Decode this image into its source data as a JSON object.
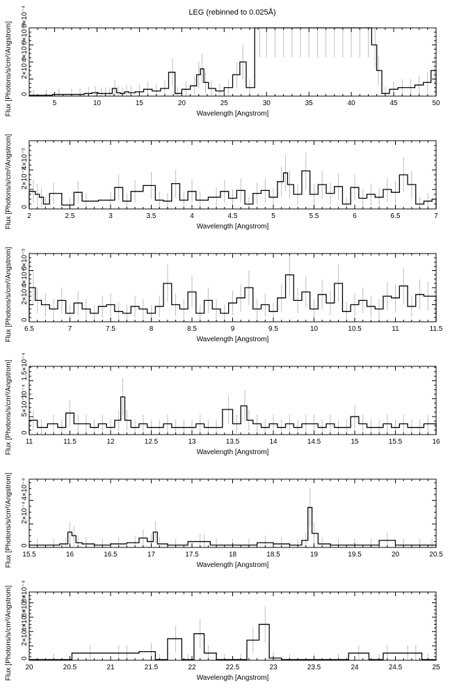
{
  "figure": {
    "title": "LEG (rebinned to 0.025Å)"
  },
  "colors": {
    "data": "#000000",
    "errorbar": "#bdbdbd",
    "axis": "#000000",
    "background": "#ffffff"
  },
  "chart_data": [
    {
      "type": "line",
      "title": "LEG (rebinned to 0.025Å)",
      "xlabel": "Wavelength [Angstrom]",
      "ylabel": "Flux [Photons/s/cm²/Angstrom]",
      "xlim": [
        2,
        50
      ],
      "ylim": [
        0,
        0.0008
      ],
      "xticks": [
        5,
        10,
        15,
        20,
        25,
        30,
        35,
        40,
        45,
        50
      ],
      "xtick_labels": [
        "5",
        "10",
        "15",
        "20",
        "25",
        "30",
        "35",
        "40",
        "45",
        "50"
      ],
      "yticks": [
        0,
        0.0002,
        0.0004,
        0.0006,
        0.0008
      ],
      "ytick_labels": [
        "0",
        "2×10⁻⁴",
        "4×10⁻⁴",
        "6×10⁻⁴",
        "8×10⁻⁴"
      ],
      "grid": false,
      "series": [
        {
          "x": [
            2.5,
            4,
            5.5,
            7,
            8,
            9,
            9.8,
            10.5,
            11,
            11.5,
            12.1,
            12.5,
            13,
            13.5,
            14,
            15,
            16,
            17,
            18,
            18.9,
            19.5,
            20.5,
            21.5,
            22,
            22.4,
            22.8,
            23.5,
            24.5,
            25.5,
            26.5,
            27.2,
            28,
            29.2,
            30,
            31,
            32,
            33,
            34,
            35,
            36,
            37,
            38,
            39,
            40,
            41,
            42,
            42.8,
            43.2,
            44,
            45,
            46,
            47,
            48,
            49,
            49.8
          ],
          "y": [
            1e-05,
            1e-05,
            2e-05,
            2e-05,
            2e-05,
            3e-05,
            4e-05,
            3e-05,
            3e-05,
            3e-05,
            9e-05,
            4e-05,
            3e-05,
            5e-05,
            4e-05,
            5e-05,
            8e-05,
            6e-05,
            9e-05,
            0.00028,
            3e-05,
            8e-05,
            0.00012,
            0.00025,
            0.00032,
            0.00016,
            9e-05,
            6e-05,
            0.0001,
            0.00025,
            0.0004,
            0.0001,
            0.0008,
            0.0008,
            0.0008,
            0.0008,
            0.0008,
            0.0008,
            0.0008,
            0.0008,
            0.0008,
            0.0008,
            0.0008,
            0.0008,
            0.0008,
            0.0008,
            0.0006,
            0.0003,
            3e-05,
            8e-05,
            0.0001,
            0.0001,
            0.00013,
            0.00016,
            0.0003
          ]
        }
      ]
    },
    {
      "type": "line",
      "xlabel": "Wavelength [Angstrom]",
      "ylabel": "Flux [Photons/s/cm²/Angstrom]",
      "xlim": [
        2,
        7
      ],
      "ylim": [
        0,
        7e-05
      ],
      "xticks": [
        2,
        2.5,
        3,
        3.5,
        4,
        4.5,
        5,
        5.5,
        6,
        6.5,
        7
      ],
      "xtick_labels": [
        "2",
        "2.5",
        "3",
        "3.5",
        "4",
        "4.5",
        "5",
        "5.5",
        "6",
        "6.5",
        "7"
      ],
      "yticks": [
        0,
        2e-05,
        4e-05
      ],
      "ytick_labels": [
        "0",
        "2×10⁻⁵",
        "4×10⁻⁵"
      ],
      "grid": false,
      "series": [
        {
          "x": [
            2.05,
            2.1,
            2.15,
            2.2,
            2.3,
            2.5,
            2.6,
            2.7,
            3.0,
            3.1,
            3.2,
            3.3,
            3.5,
            3.6,
            3.7,
            3.8,
            3.9,
            4.0,
            4.1,
            4.3,
            4.4,
            4.5,
            4.6,
            4.7,
            4.8,
            4.9,
            5.0,
            5.1,
            5.15,
            5.2,
            5.3,
            5.4,
            5.5,
            5.6,
            5.7,
            5.8,
            5.9,
            6.0,
            6.1,
            6.2,
            6.3,
            6.4,
            6.5,
            6.6,
            6.7,
            6.8,
            6.9,
            7.0
          ],
          "y": [
            1.8e-05,
            1.5e-05,
            1.2e-05,
            5e-06,
            1.6e-05,
            4e-06,
            1.7e-05,
            8e-06,
            9e-06,
            2.2e-05,
            8e-06,
            1.8e-05,
            2.4e-05,
            9e-06,
            8e-06,
            2.6e-05,
            9e-06,
            1.8e-05,
            9e-06,
            1.2e-05,
            1.8e-05,
            1.1e-05,
            1.9e-05,
            5e-06,
            1.6e-05,
            1.9e-05,
            1.2e-05,
            2.8e-05,
            3.7e-05,
            2.5e-05,
            1.5e-05,
            3.9e-05,
            1.5e-05,
            2.5e-05,
            1.6e-05,
            2.3e-05,
            5e-06,
            2.2e-05,
            1.1e-05,
            1.5e-05,
            1.2e-05,
            2e-05,
            1.7e-05,
            3.5e-05,
            2.5e-05,
            5e-06,
            8e-06,
            1e-05
          ]
        }
      ]
    },
    {
      "type": "line",
      "xlabel": "Wavelength [Angstrom]",
      "ylabel": "Flux [Photons/s/cm²/Angstrom]",
      "xlim": [
        6.5,
        11.5
      ],
      "ylim": [
        0,
        8e-05
      ],
      "xticks": [
        6.5,
        7,
        7.5,
        8,
        8.5,
        9,
        9.5,
        10,
        10.5,
        11,
        11.5
      ],
      "xtick_labels": [
        "6.5",
        "7",
        "7.5",
        "8",
        "8.5",
        "9",
        "9.5",
        "10",
        "10.5",
        "11",
        "11.5"
      ],
      "yticks": [
        0,
        2e-05,
        4e-05,
        6e-05
      ],
      "ytick_labels": [
        "0",
        "2×10⁻⁵",
        "4×10⁻⁵",
        "6×10⁻⁵"
      ],
      "grid": false,
      "series": [
        {
          "x": [
            6.55,
            6.6,
            6.7,
            6.8,
            6.9,
            7.0,
            7.1,
            7.2,
            7.3,
            7.4,
            7.5,
            7.6,
            7.7,
            7.8,
            7.9,
            8.0,
            8.1,
            8.2,
            8.3,
            8.4,
            8.5,
            8.6,
            8.7,
            8.8,
            8.9,
            9.0,
            9.1,
            9.2,
            9.3,
            9.4,
            9.5,
            9.6,
            9.7,
            9.8,
            9.9,
            10.0,
            10.1,
            10.2,
            10.3,
            10.4,
            10.5,
            10.6,
            10.7,
            10.8,
            10.9,
            11.0,
            11.1,
            11.2,
            11.3,
            11.4
          ],
          "y": [
            4e-05,
            2.5e-05,
            2e-05,
            1.5e-05,
            2.5e-05,
            1e-05,
            2.2e-05,
            1.5e-05,
            1e-05,
            1.8e-05,
            2e-05,
            1.2e-05,
            1e-05,
            1.8e-05,
            1.5e-05,
            1e-05,
            1.8e-05,
            4.5e-05,
            2e-05,
            1.5e-05,
            3.5e-05,
            1e-05,
            2.5e-05,
            1.5e-05,
            1e-05,
            2.2e-05,
            2.8e-05,
            4e-05,
            1.5e-05,
            2e-05,
            1.2e-05,
            2.8e-05,
            5.5e-05,
            2.5e-05,
            3.5e-05,
            1.5e-05,
            3.2e-05,
            2.2e-05,
            4.5e-05,
            1.2e-05,
            2e-05,
            2.5e-05,
            1.8e-05,
            1.5e-05,
            3e-05,
            2.8e-05,
            4.2e-05,
            1.8e-05,
            3.2e-05,
            3e-05
          ]
        }
      ]
    },
    {
      "type": "line",
      "xlabel": "Wavelength [Angstrom]",
      "ylabel": "Flux [Photons/s/cm²/Angstrom]",
      "xlim": [
        11,
        16
      ],
      "ylim": [
        0,
        0.00019
      ],
      "xticks": [
        11,
        11.5,
        12,
        12.5,
        13,
        13.5,
        14,
        14.5,
        15,
        15.5,
        16
      ],
      "xtick_labels": [
        "11",
        "11.5",
        "12",
        "12.5",
        "13",
        "13.5",
        "14",
        "14.5",
        "15",
        "15.5",
        "16"
      ],
      "yticks": [
        0,
        5e-05,
        0.0001,
        0.00015
      ],
      "ytick_labels": [
        "0",
        "5×10⁻⁵",
        "10⁻⁴",
        "1.5×10⁻⁴"
      ],
      "grid": false,
      "series": [
        {
          "x": [
            11.05,
            11.15,
            11.3,
            11.4,
            11.5,
            11.6,
            11.7,
            11.8,
            11.9,
            12.0,
            12.1,
            12.15,
            12.2,
            12.3,
            12.4,
            12.5,
            12.6,
            12.7,
            12.8,
            12.9,
            13.0,
            13.1,
            13.2,
            13.3,
            13.45,
            13.55,
            13.65,
            13.7,
            13.8,
            13.9,
            14.0,
            14.1,
            14.2,
            14.3,
            14.4,
            14.5,
            14.6,
            14.7,
            14.8,
            14.9,
            15.0,
            15.1,
            15.2,
            15.3,
            15.4,
            15.5,
            15.6,
            15.7,
            15.8,
            15.9,
            16.0
          ],
          "y": [
            4e-05,
            2e-05,
            3e-05,
            2e-05,
            6e-05,
            3e-05,
            3e-05,
            2e-05,
            3e-05,
            2e-05,
            4e-05,
            0.000105,
            4e-05,
            2e-05,
            3e-05,
            2e-05,
            2e-05,
            3e-05,
            2e-05,
            2e-05,
            2e-05,
            3e-05,
            2e-05,
            2e-05,
            7e-05,
            3e-05,
            8e-05,
            4e-05,
            3e-05,
            2e-05,
            3e-05,
            2e-05,
            3e-05,
            2e-05,
            3e-05,
            3e-05,
            2e-05,
            3e-05,
            2e-05,
            2e-05,
            5e-05,
            3e-05,
            2e-05,
            2e-05,
            3e-05,
            2e-05,
            3e-05,
            2e-05,
            2e-05,
            3e-05,
            3e-05
          ]
        }
      ]
    },
    {
      "type": "line",
      "xlabel": "Wavelength [Angstrom]",
      "ylabel": "Flux [Photons/s/cm²/Angstrom]",
      "xlim": [
        15.5,
        20.5
      ],
      "ylim": [
        0,
        0.00058
      ],
      "xticks": [
        15.5,
        16,
        16.5,
        17,
        17.5,
        18,
        18.5,
        19,
        19.5,
        20,
        20.5
      ],
      "xtick_labels": [
        "15.5",
        "16",
        "16.5",
        "17",
        "17.5",
        "18",
        "18.5",
        "19",
        "19.5",
        "20",
        "20.5"
      ],
      "yticks": [
        0,
        0.0002,
        0.0004
      ],
      "ytick_labels": [
        "0",
        "2×10⁻⁴",
        "4×10⁻⁴"
      ],
      "grid": false,
      "series": [
        {
          "x": [
            15.6,
            15.8,
            15.95,
            16.0,
            16.05,
            16.1,
            16.2,
            16.4,
            16.6,
            16.8,
            16.9,
            17.0,
            17.05,
            17.1,
            17.3,
            17.6,
            17.65,
            17.8,
            18.0,
            18.2,
            18.4,
            18.6,
            18.8,
            18.9,
            18.95,
            19.0,
            19.1,
            19.3,
            19.5,
            19.7,
            19.9,
            20.1,
            20.3,
            20.45
          ],
          "y": [
            2e-05,
            2e-05,
            3e-05,
            0.00013,
            0.0001,
            4e-05,
            3e-05,
            2e-05,
            3e-05,
            4e-05,
            8e-05,
            5e-05,
            0.00013,
            3e-05,
            2e-05,
            5e-05,
            5e-05,
            2e-05,
            2e-05,
            2e-05,
            4e-05,
            3e-05,
            2e-05,
            6e-05,
            0.00034,
            0.00012,
            3e-05,
            2e-05,
            2e-05,
            2e-05,
            6e-05,
            2e-05,
            2e-05,
            2e-05
          ]
        }
      ]
    },
    {
      "type": "line",
      "xlabel": "Wavelength [Angstrom]",
      "ylabel": "Flux [Photons/s/cm²/Angstrom]",
      "xlim": [
        20,
        25
      ],
      "ylim": [
        0,
        0.00095
      ],
      "xticks": [
        20,
        20.5,
        21,
        21.5,
        22,
        22.5,
        23,
        23.5,
        24,
        24.5,
        25
      ],
      "xtick_labels": [
        "20",
        "20.5",
        "21",
        "21.5",
        "22",
        "22.5",
        "23",
        "23.5",
        "24",
        "24.5",
        "25"
      ],
      "yticks": [
        0,
        0.0002,
        0.0004,
        0.0006,
        0.0008
      ],
      "ytick_labels": [
        "0",
        "2×10⁻⁴",
        "4×10⁻⁴",
        "6×10⁻⁴",
        "8×10⁻⁴"
      ],
      "grid": false,
      "series": [
        {
          "x": [
            20.3,
            20.75,
            21.1,
            21.2,
            21.5,
            21.6,
            21.8,
            21.95,
            22.1,
            22.2,
            22.4,
            22.6,
            22.75,
            22.9,
            23.0,
            23.2,
            23.5,
            23.8,
            24.05,
            24.3,
            24.4,
            24.65,
            24.75,
            24.9
          ],
          "y": [
            1e-05,
            0.0001,
            0.0001,
            0.0001,
            0.00012,
            1e-05,
            0.0003,
            1e-05,
            0.00037,
            0.0001,
            1e-05,
            1e-05,
            0.00028,
            0.0005,
            3e-05,
            1e-05,
            1e-05,
            1e-05,
            0.0001,
            1e-05,
            0.0001,
            0.0001,
            0.0001,
            1e-05
          ]
        }
      ]
    }
  ]
}
